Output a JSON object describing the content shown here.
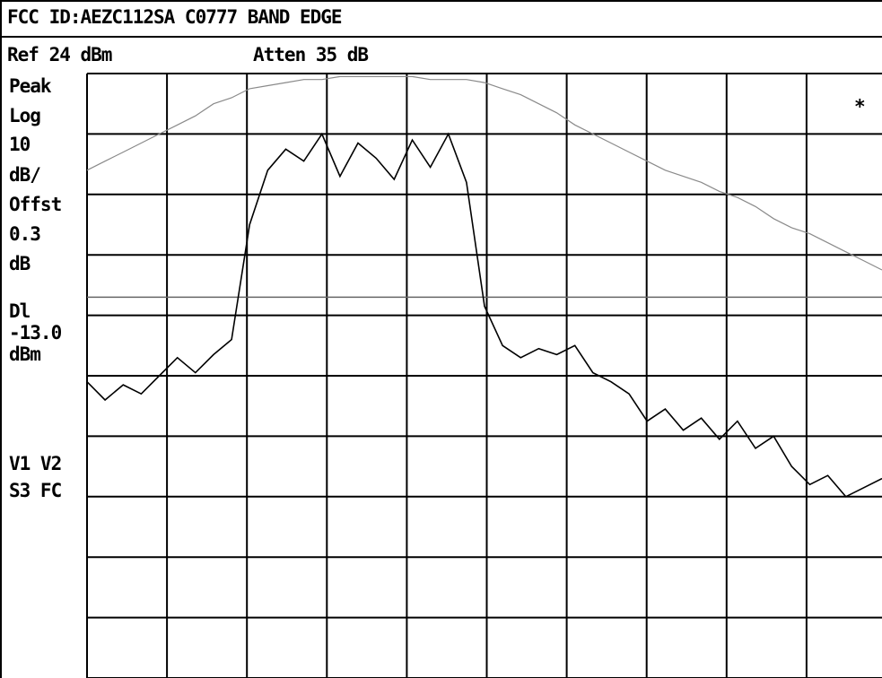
{
  "chart_data": {
    "type": "line",
    "title": "FCC ID:AEZC112SA C0777 BAND EDGE",
    "ref_label": "Ref 24 dBm",
    "atten_label": "Atten 35 dB",
    "side_labels": [
      "Peak",
      "Log",
      "10",
      "dB/",
      "Offst",
      "0.3",
      "dB",
      "Dl",
      "-13.0",
      "dBm",
      "V1  V2",
      "S3  FC"
    ],
    "marker": "*",
    "ylim": [
      -76,
      24
    ],
    "ydiv": 10,
    "display_line": -13,
    "grid": true,
    "categories": [
      null,
      null,
      null,
      null,
      null,
      null,
      null,
      null,
      null,
      null,
      null,
      null,
      null,
      null,
      null,
      null,
      null,
      null,
      null,
      null,
      null,
      null,
      null,
      null,
      null,
      null,
      null,
      null,
      null,
      null,
      null,
      null,
      null,
      null,
      null,
      null,
      null,
      null,
      null,
      null,
      null,
      null,
      null,
      null,
      null
    ],
    "series": [
      {
        "name": null,
        "color": "#8a8a8a",
        "values": [
          8,
          9.5,
          11,
          12.5,
          14,
          15.5,
          17,
          19,
          20,
          21.5,
          22,
          22.5,
          23,
          23,
          23.5,
          23.5,
          23.5,
          23.5,
          23.5,
          23,
          23,
          23,
          22.5,
          21.5,
          20.5,
          19,
          17.5,
          15.5,
          14,
          12.5,
          11,
          9.5,
          8,
          7,
          6,
          4.5,
          3.5,
          2,
          0,
          -1.5,
          -2.5,
          -4,
          -5.5,
          -7,
          -8.5
        ]
      },
      {
        "name": null,
        "color": "#000000",
        "values": [
          -27,
          -30,
          -27.5,
          -29,
          -26,
          -23,
          -25.5,
          -22.5,
          -20,
          -1,
          8,
          11.5,
          9.5,
          14,
          7,
          12.5,
          10,
          6.5,
          13,
          8.5,
          14,
          6,
          -14.5,
          -21,
          -23,
          -21.5,
          -22.5,
          -21,
          -25.5,
          -27,
          -29,
          -33.5,
          -31.5,
          -35,
          -33,
          -36.5,
          -33.5,
          -38,
          -36,
          -41,
          -44,
          -42.5,
          -46,
          -44.5,
          -43
        ]
      }
    ]
  }
}
